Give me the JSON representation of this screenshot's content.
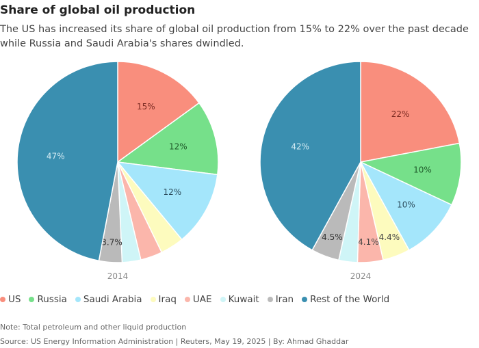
{
  "chart_data": {
    "type": "pie",
    "title": "Share of global oil production",
    "subtitle": "The US has increased its share of global oil production from 15% to 22% over the past decade while Russia and Saudi Arabia's shares dwindled.",
    "categories": [
      "US",
      "Russia",
      "Saudi Arabia",
      "Iraq",
      "UAE",
      "Kuwait",
      "Iran",
      "Rest of the World"
    ],
    "colors": [
      "#f98e7d",
      "#76e08a",
      "#a4e6fb",
      "#fdfbbe",
      "#fbb6ab",
      "#cff5f7",
      "#bababa",
      "#3a8fb0"
    ],
    "label_colors": [
      "#7a2a22",
      "#1f5a2a",
      "#2a4a5a",
      "#444",
      "#444",
      "#444",
      "#333",
      "#d5ecf4"
    ],
    "series": [
      {
        "name": "2014",
        "values": [
          15,
          12,
          12,
          3.8,
          3.5,
          3.0,
          3.7,
          47
        ],
        "labels": [
          "15%",
          "12%",
          "12%",
          null,
          null,
          null,
          "3.7%",
          "47%"
        ]
      },
      {
        "name": "2024",
        "values": [
          22,
          10,
          10,
          4.4,
          4.1,
          3.0,
          4.5,
          42
        ],
        "labels": [
          "22%",
          "10%",
          "10%",
          "4.4%",
          "4.1%",
          null,
          "4.5%",
          "42%"
        ]
      }
    ],
    "legend_position": "bottom"
  },
  "note": "Note: Total petroleum and other liquid production",
  "source": "Source: US Energy Information Administration | Reuters, May 19, 2025 | By: Ahmad Ghaddar"
}
